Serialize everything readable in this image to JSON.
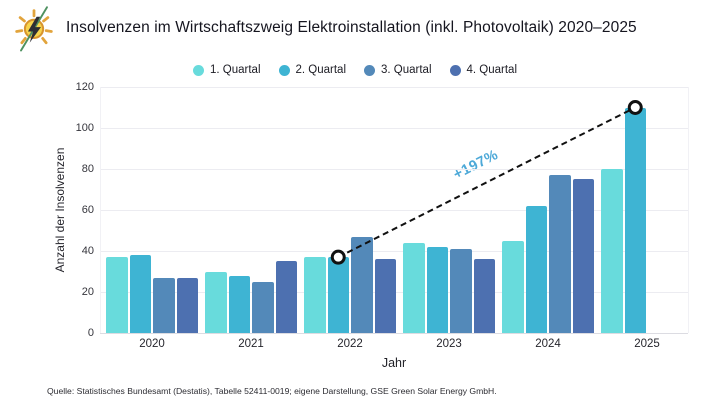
{
  "header": {
    "title": "Insolvenzen im Wirtschaftszweig Elektroinstallation (inkl. Photovoltaik) 2020–2025",
    "logo": "sun-lightning-logo"
  },
  "chart_data": {
    "type": "bar",
    "title": "Insolvenzen im Wirtschaftszweig Elektroinstallation (inkl. Photovoltaik) 2020–2025",
    "xlabel": "Jahr",
    "ylabel": "Anzahl der Insolvenzen",
    "ylim": [
      0,
      120
    ],
    "yticks": [
      0,
      20,
      40,
      60,
      80,
      100,
      120
    ],
    "grid": true,
    "legend_position": "top",
    "categories": [
      "2020",
      "2021",
      "2022",
      "2023",
      "2024",
      "2025"
    ],
    "series": [
      {
        "name": "1. Quartal",
        "color": "#68dbdc",
        "values": [
          37,
          30,
          37,
          44,
          45,
          80
        ]
      },
      {
        "name": "2. Quartal",
        "color": "#3eb4d3",
        "values": [
          38,
          28,
          37,
          42,
          62,
          110
        ]
      },
      {
        "name": "3. Quartal",
        "color": "#5389b9",
        "values": [
          27,
          25,
          47,
          41,
          77,
          null
        ]
      },
      {
        "name": "4. Quartal",
        "color": "#4d70b0",
        "values": [
          27,
          35,
          36,
          36,
          75,
          null
        ]
      }
    ],
    "annotation": {
      "label": "+197%",
      "line_style": "dashed",
      "line_color": "#111111",
      "from": {
        "year": "2022",
        "series": "2. Quartal",
        "value": 37
      },
      "to": {
        "year": "2025",
        "series": "2. Quartal",
        "value": 110
      }
    }
  },
  "footer": {
    "source": "Quelle: Statistisches Bundesamt (Destatis), Tabelle 52411-0019; eigene Darstellung, GSE Green Solar Energy GmbH."
  }
}
